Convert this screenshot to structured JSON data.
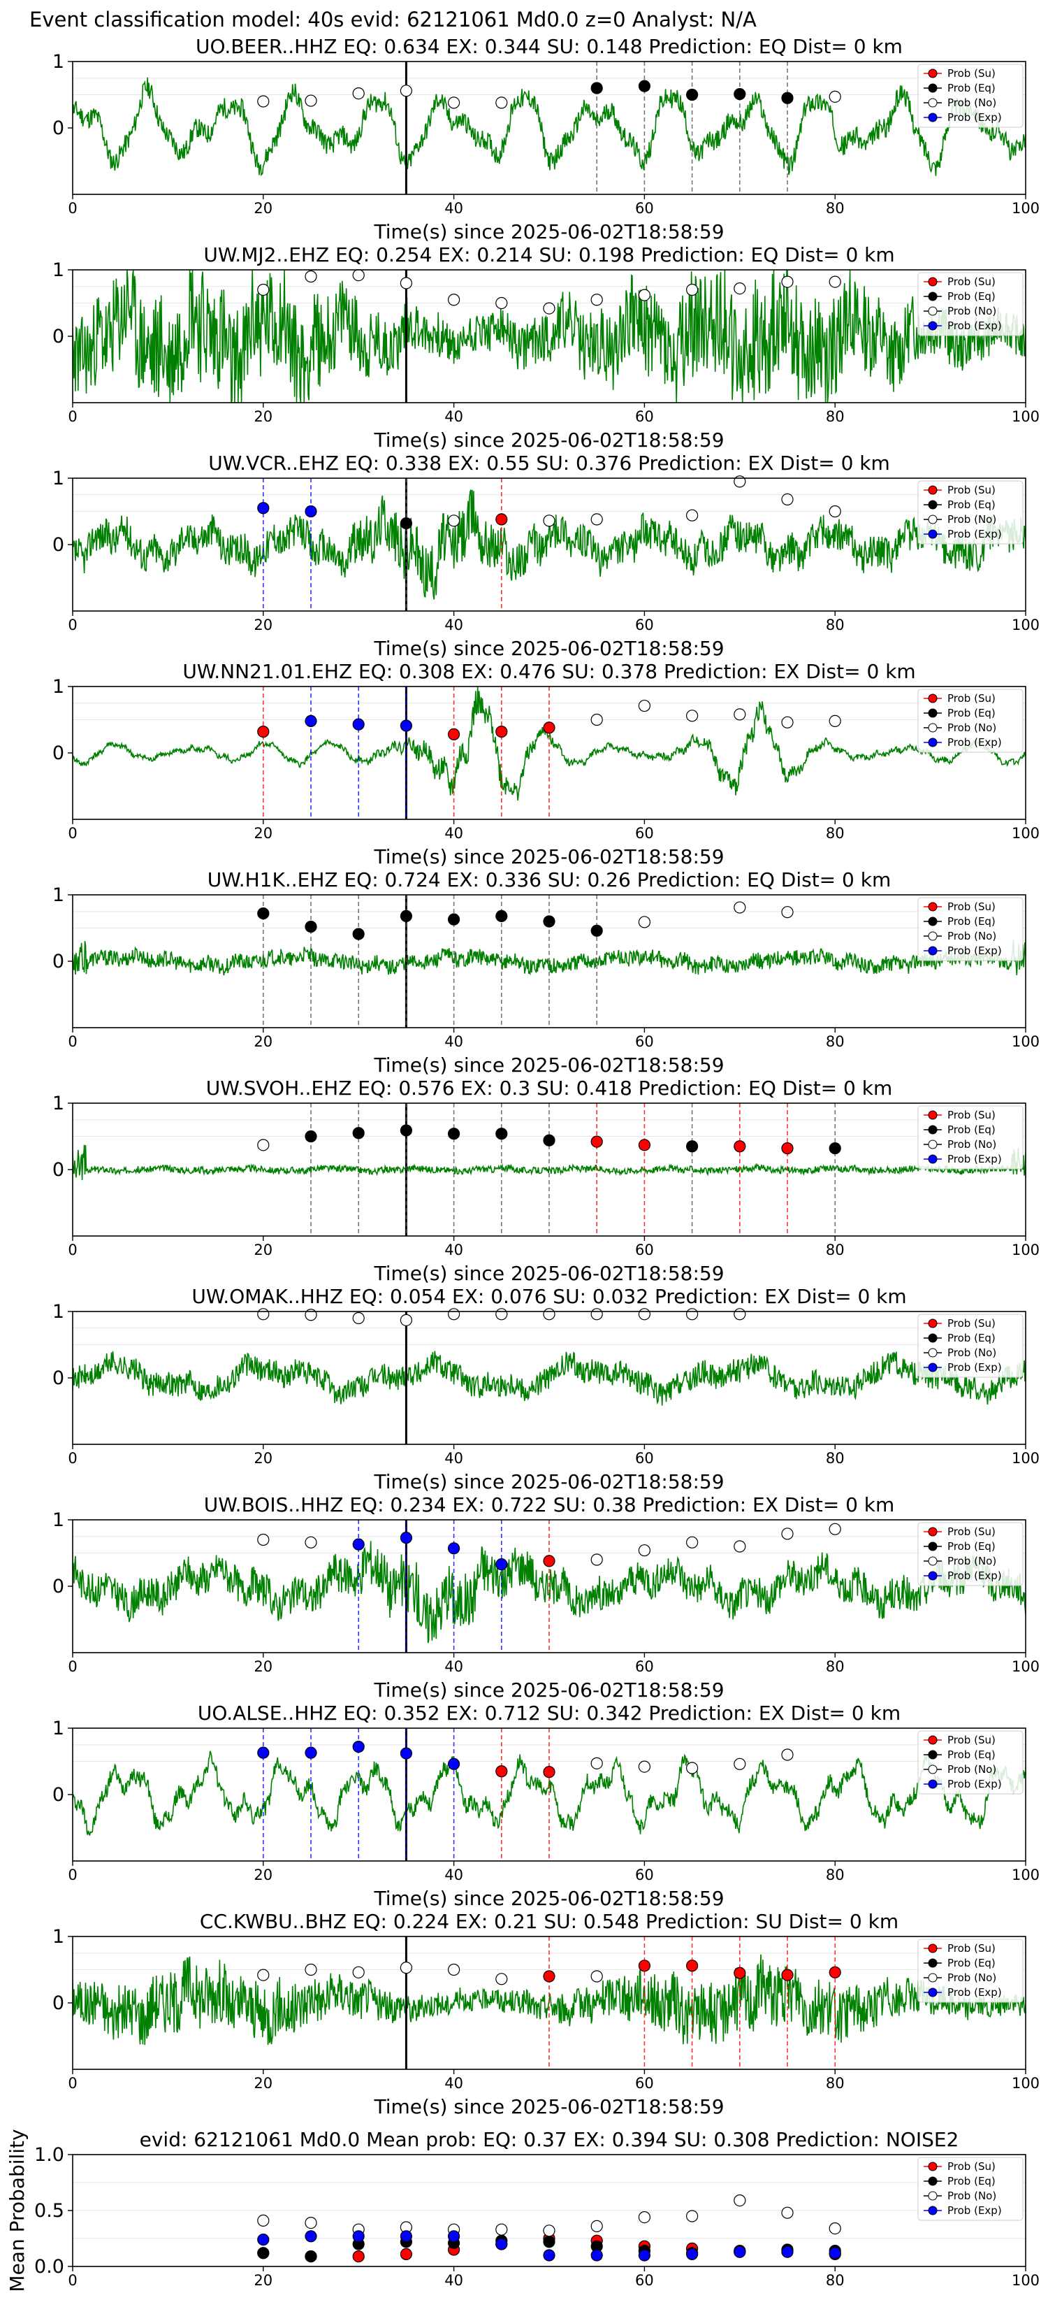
{
  "figure_title": "Event classification model: 40s evid: 62121061 Md0.0 z=0 Analyst: N/A",
  "legend_labels": [
    "Prob (Su)",
    "Prob (Eq)",
    "Prob (No)",
    "Prob (Exp)"
  ],
  "colors": {
    "su": "#ff0000",
    "eq": "#000000",
    "no": "#ffffff",
    "exp": "#0000ff",
    "waveform": "#008000"
  },
  "chart_data": [
    {
      "type": "line",
      "station": "UO.BEER..HHZ",
      "title": "UO.BEER..HHZ   EQ: 0.634   EX: 0.344   SU: 0.148   Prediction: EQ    Dist= 0 km",
      "xlabel": "Time(s) since 2025-06-02T18:58:59",
      "xlim": [
        0,
        100
      ],
      "ylim": [
        -1,
        1
      ],
      "xticks": [
        0,
        20,
        40,
        60,
        80,
        100
      ],
      "yticks": [
        0,
        1
      ],
      "pick_time": 35,
      "waveform": {
        "seed": 11,
        "style": "smooth",
        "amp": 0.6,
        "noise": 0.15
      },
      "points": [
        {
          "x": 20,
          "y": 0.4,
          "class": "no"
        },
        {
          "x": 25,
          "y": 0.41,
          "class": "no"
        },
        {
          "x": 30,
          "y": 0.52,
          "class": "no"
        },
        {
          "x": 35,
          "y": 0.56,
          "class": "no"
        },
        {
          "x": 40,
          "y": 0.38,
          "class": "no"
        },
        {
          "x": 45,
          "y": 0.38,
          "class": "no"
        },
        {
          "x": 55,
          "y": 0.6,
          "class": "eq"
        },
        {
          "x": 60,
          "y": 0.63,
          "class": "eq"
        },
        {
          "x": 65,
          "y": 0.5,
          "class": "eq"
        },
        {
          "x": 70,
          "y": 0.51,
          "class": "eq"
        },
        {
          "x": 75,
          "y": 0.45,
          "class": "eq"
        },
        {
          "x": 80,
          "y": 0.47,
          "class": "no"
        }
      ]
    },
    {
      "type": "line",
      "station": "UW.MJ2..EHZ",
      "title": "UW.MJ2..EHZ   EQ: 0.254   EX: 0.214   SU: 0.198   Prediction: EQ    Dist= 0 km",
      "xlabel": "Time(s) since 2025-06-02T18:58:59",
      "xlim": [
        0,
        100
      ],
      "ylim": [
        -1,
        1
      ],
      "xticks": [
        0,
        20,
        40,
        60,
        80,
        100
      ],
      "yticks": [
        0,
        1
      ],
      "pick_time": 35,
      "waveform": {
        "seed": 23,
        "style": "noisy",
        "amp": 0.5,
        "noise": 0.75
      },
      "points": [
        {
          "x": 20,
          "y": 0.7,
          "class": "no"
        },
        {
          "x": 25,
          "y": 0.9,
          "class": "no"
        },
        {
          "x": 30,
          "y": 0.92,
          "class": "no"
        },
        {
          "x": 35,
          "y": 0.8,
          "class": "no"
        },
        {
          "x": 40,
          "y": 0.55,
          "class": "no"
        },
        {
          "x": 45,
          "y": 0.5,
          "class": "no"
        },
        {
          "x": 50,
          "y": 0.42,
          "class": "no"
        },
        {
          "x": 55,
          "y": 0.55,
          "class": "no"
        },
        {
          "x": 60,
          "y": 0.62,
          "class": "no"
        },
        {
          "x": 65,
          "y": 0.7,
          "class": "no"
        },
        {
          "x": 70,
          "y": 0.72,
          "class": "no"
        },
        {
          "x": 75,
          "y": 0.82,
          "class": "no"
        },
        {
          "x": 80,
          "y": 0.82,
          "class": "no"
        }
      ]
    },
    {
      "type": "line",
      "station": "UW.VCR..EHZ",
      "title": "UW.VCR..EHZ   EQ: 0.338   EX: 0.55   SU: 0.376   Prediction: EX    Dist= 0 km",
      "xlabel": "Time(s) since 2025-06-02T18:58:59",
      "xlim": [
        0,
        100
      ],
      "ylim": [
        -1,
        1
      ],
      "xticks": [
        0,
        20,
        40,
        60,
        80,
        100
      ],
      "yticks": [
        0,
        1
      ],
      "pick_time": 35,
      "waveform": {
        "seed": 37,
        "style": "mixed",
        "amp": 0.4,
        "noise": 0.35
      },
      "points": [
        {
          "x": 20,
          "y": 0.55,
          "class": "exp"
        },
        {
          "x": 25,
          "y": 0.5,
          "class": "exp"
        },
        {
          "x": 35,
          "y": 0.32,
          "class": "eq"
        },
        {
          "x": 40,
          "y": 0.36,
          "class": "no"
        },
        {
          "x": 45,
          "y": 0.38,
          "class": "su"
        },
        {
          "x": 50,
          "y": 0.36,
          "class": "no"
        },
        {
          "x": 55,
          "y": 0.38,
          "class": "no"
        },
        {
          "x": 65,
          "y": 0.44,
          "class": "no"
        },
        {
          "x": 70,
          "y": 0.95,
          "class": "no"
        },
        {
          "x": 75,
          "y": 0.68,
          "class": "no"
        },
        {
          "x": 80,
          "y": 0.5,
          "class": "no"
        }
      ]
    },
    {
      "type": "line",
      "station": "UW.NN21.01.EHZ",
      "title": "UW.NN21.01.EHZ   EQ: 0.308   EX: 0.476   SU: 0.378   Prediction: EX    Dist= 0 km",
      "xlabel": "Time(s) since 2025-06-02T18:58:59",
      "xlim": [
        0,
        100
      ],
      "ylim": [
        -1,
        1
      ],
      "xticks": [
        0,
        20,
        40,
        60,
        80,
        100
      ],
      "yticks": [
        0,
        1
      ],
      "pick_time": 35,
      "waveform": {
        "seed": 41,
        "style": "burst",
        "amp": 0.5,
        "noise": 0.12
      },
      "points": [
        {
          "x": 20,
          "y": 0.32,
          "class": "su"
        },
        {
          "x": 25,
          "y": 0.48,
          "class": "exp"
        },
        {
          "x": 30,
          "y": 0.43,
          "class": "exp"
        },
        {
          "x": 35,
          "y": 0.41,
          "class": "exp"
        },
        {
          "x": 40,
          "y": 0.28,
          "class": "su"
        },
        {
          "x": 45,
          "y": 0.32,
          "class": "su"
        },
        {
          "x": 50,
          "y": 0.38,
          "class": "su"
        },
        {
          "x": 55,
          "y": 0.5,
          "class": "no"
        },
        {
          "x": 60,
          "y": 0.71,
          "class": "no"
        },
        {
          "x": 65,
          "y": 0.56,
          "class": "no"
        },
        {
          "x": 70,
          "y": 0.58,
          "class": "no"
        },
        {
          "x": 75,
          "y": 0.46,
          "class": "no"
        },
        {
          "x": 80,
          "y": 0.48,
          "class": "no"
        }
      ]
    },
    {
      "type": "line",
      "station": "UW.H1K..EHZ",
      "title": "UW.H1K..EHZ   EQ: 0.724   EX: 0.336   SU: 0.26   Prediction: EQ    Dist= 0 km",
      "xlabel": "Time(s) since 2025-06-02T18:58:59",
      "xlim": [
        0,
        100
      ],
      "ylim": [
        -1,
        1
      ],
      "xticks": [
        0,
        20,
        40,
        60,
        80,
        100
      ],
      "yticks": [
        0,
        1
      ],
      "pick_time": 35,
      "waveform": {
        "seed": 53,
        "style": "quiet",
        "amp": 0.1,
        "noise": 0.12
      },
      "points": [
        {
          "x": 20,
          "y": 0.72,
          "class": "eq"
        },
        {
          "x": 25,
          "y": 0.52,
          "class": "eq"
        },
        {
          "x": 30,
          "y": 0.41,
          "class": "eq"
        },
        {
          "x": 35,
          "y": 0.68,
          "class": "eq"
        },
        {
          "x": 40,
          "y": 0.63,
          "class": "eq"
        },
        {
          "x": 45,
          "y": 0.68,
          "class": "eq"
        },
        {
          "x": 50,
          "y": 0.6,
          "class": "eq"
        },
        {
          "x": 55,
          "y": 0.46,
          "class": "eq"
        },
        {
          "x": 60,
          "y": 0.59,
          "class": "no"
        },
        {
          "x": 70,
          "y": 0.81,
          "class": "no"
        },
        {
          "x": 75,
          "y": 0.74,
          "class": "no"
        }
      ]
    },
    {
      "type": "line",
      "station": "UW.SVOH..EHZ",
      "title": "UW.SVOH..EHZ   EQ: 0.576   EX: 0.3   SU: 0.418   Prediction: EQ    Dist= 0 km",
      "xlabel": "Time(s) since 2025-06-02T18:58:59",
      "xlim": [
        0,
        100
      ],
      "ylim": [
        -1,
        1
      ],
      "xticks": [
        0,
        20,
        40,
        60,
        80,
        100
      ],
      "yticks": [
        0,
        1
      ],
      "pick_time": 35,
      "waveform": {
        "seed": 67,
        "style": "quiet",
        "amp": 0.03,
        "noise": 0.05
      },
      "points": [
        {
          "x": 20,
          "y": 0.37,
          "class": "no"
        },
        {
          "x": 25,
          "y": 0.5,
          "class": "eq"
        },
        {
          "x": 30,
          "y": 0.55,
          "class": "eq"
        },
        {
          "x": 35,
          "y": 0.59,
          "class": "eq"
        },
        {
          "x": 40,
          "y": 0.54,
          "class": "eq"
        },
        {
          "x": 45,
          "y": 0.54,
          "class": "eq"
        },
        {
          "x": 50,
          "y": 0.44,
          "class": "eq"
        },
        {
          "x": 55,
          "y": 0.42,
          "class": "su"
        },
        {
          "x": 60,
          "y": 0.37,
          "class": "su"
        },
        {
          "x": 65,
          "y": 0.35,
          "class": "eq"
        },
        {
          "x": 70,
          "y": 0.35,
          "class": "su"
        },
        {
          "x": 75,
          "y": 0.32,
          "class": "su"
        },
        {
          "x": 80,
          "y": 0.32,
          "class": "eq"
        }
      ]
    },
    {
      "type": "line",
      "station": "UW.OMAK..HHZ",
      "title": "UW.OMAK..HHZ   EQ: 0.054   EX: 0.076   SU: 0.032   Prediction: EX    Dist= 0 km",
      "xlabel": "Time(s) since 2025-06-02T18:58:59",
      "xlim": [
        0,
        100
      ],
      "ylim": [
        -1,
        1
      ],
      "xticks": [
        0,
        20,
        40,
        60,
        80,
        100
      ],
      "yticks": [
        0,
        1
      ],
      "pick_time": 35,
      "waveform": {
        "seed": 71,
        "style": "smooth",
        "amp": 0.25,
        "noise": 0.18
      },
      "points": [
        {
          "x": 20,
          "y": 0.96,
          "class": "no"
        },
        {
          "x": 25,
          "y": 0.95,
          "class": "no"
        },
        {
          "x": 30,
          "y": 0.9,
          "class": "no"
        },
        {
          "x": 35,
          "y": 0.87,
          "class": "no"
        },
        {
          "x": 40,
          "y": 0.96,
          "class": "no"
        },
        {
          "x": 45,
          "y": 0.96,
          "class": "no"
        },
        {
          "x": 50,
          "y": 0.96,
          "class": "no"
        },
        {
          "x": 55,
          "y": 0.96,
          "class": "no"
        },
        {
          "x": 60,
          "y": 0.96,
          "class": "no"
        },
        {
          "x": 65,
          "y": 0.96,
          "class": "no"
        },
        {
          "x": 70,
          "y": 0.96,
          "class": "no"
        }
      ]
    },
    {
      "type": "line",
      "station": "UW.BOIS..HHZ",
      "title": "UW.BOIS..HHZ   EQ: 0.234   EX: 0.722   SU: 0.38   Prediction: EX    Dist= 0 km",
      "xlabel": "Time(s) since 2025-06-02T18:58:59",
      "xlim": [
        0,
        100
      ],
      "ylim": [
        -1,
        1
      ],
      "xticks": [
        0,
        20,
        40,
        60,
        80,
        100
      ],
      "yticks": [
        0,
        1
      ],
      "pick_time": 35,
      "waveform": {
        "seed": 83,
        "style": "mixed",
        "amp": 0.45,
        "noise": 0.35
      },
      "points": [
        {
          "x": 20,
          "y": 0.7,
          "class": "no"
        },
        {
          "x": 25,
          "y": 0.66,
          "class": "no"
        },
        {
          "x": 30,
          "y": 0.63,
          "class": "exp"
        },
        {
          "x": 35,
          "y": 0.73,
          "class": "exp"
        },
        {
          "x": 40,
          "y": 0.57,
          "class": "exp"
        },
        {
          "x": 45,
          "y": 0.33,
          "class": "exp"
        },
        {
          "x": 50,
          "y": 0.38,
          "class": "su"
        },
        {
          "x": 55,
          "y": 0.4,
          "class": "no"
        },
        {
          "x": 60,
          "y": 0.54,
          "class": "no"
        },
        {
          "x": 65,
          "y": 0.66,
          "class": "no"
        },
        {
          "x": 70,
          "y": 0.6,
          "class": "no"
        },
        {
          "x": 75,
          "y": 0.79,
          "class": "no"
        },
        {
          "x": 80,
          "y": 0.86,
          "class": "no"
        }
      ]
    },
    {
      "type": "line",
      "station": "UO.ALSE..HHZ",
      "title": "UO.ALSE..HHZ   EQ: 0.352   EX: 0.712   SU: 0.342   Prediction: EX    Dist= 0 km",
      "xlabel": "Time(s) since 2025-06-02T18:58:59",
      "xlim": [
        0,
        100
      ],
      "ylim": [
        -1,
        1
      ],
      "xticks": [
        0,
        20,
        40,
        60,
        80,
        100
      ],
      "yticks": [
        0,
        1
      ],
      "pick_time": 35,
      "waveform": {
        "seed": 97,
        "style": "smooth",
        "amp": 0.55,
        "noise": 0.12
      },
      "points": [
        {
          "x": 20,
          "y": 0.63,
          "class": "exp"
        },
        {
          "x": 25,
          "y": 0.63,
          "class": "exp"
        },
        {
          "x": 30,
          "y": 0.72,
          "class": "exp"
        },
        {
          "x": 35,
          "y": 0.62,
          "class": "exp"
        },
        {
          "x": 40,
          "y": 0.46,
          "class": "exp"
        },
        {
          "x": 45,
          "y": 0.35,
          "class": "su"
        },
        {
          "x": 50,
          "y": 0.34,
          "class": "su"
        },
        {
          "x": 55,
          "y": 0.47,
          "class": "no"
        },
        {
          "x": 60,
          "y": 0.42,
          "class": "no"
        },
        {
          "x": 65,
          "y": 0.4,
          "class": "no"
        },
        {
          "x": 70,
          "y": 0.46,
          "class": "no"
        },
        {
          "x": 75,
          "y": 0.6,
          "class": "no"
        }
      ]
    },
    {
      "type": "line",
      "station": "CC.KWBU..BHZ",
      "title": "CC.KWBU..BHZ   EQ: 0.224   EX: 0.21   SU: 0.548   Prediction: SU    Dist= 0 km",
      "xlabel": "Time(s) since 2025-06-02T18:58:59",
      "xlim": [
        0,
        100
      ],
      "ylim": [
        -1,
        1
      ],
      "xticks": [
        0,
        20,
        40,
        60,
        80,
        100
      ],
      "yticks": [
        0,
        1
      ],
      "pick_time": 35,
      "waveform": {
        "seed": 101,
        "style": "noisy",
        "amp": 0.25,
        "noise": 0.4
      },
      "points": [
        {
          "x": 20,
          "y": 0.42,
          "class": "no"
        },
        {
          "x": 25,
          "y": 0.5,
          "class": "no"
        },
        {
          "x": 30,
          "y": 0.46,
          "class": "no"
        },
        {
          "x": 35,
          "y": 0.53,
          "class": "no"
        },
        {
          "x": 40,
          "y": 0.5,
          "class": "no"
        },
        {
          "x": 45,
          "y": 0.36,
          "class": "no"
        },
        {
          "x": 50,
          "y": 0.4,
          "class": "su"
        },
        {
          "x": 55,
          "y": 0.4,
          "class": "no"
        },
        {
          "x": 60,
          "y": 0.56,
          "class": "su"
        },
        {
          "x": 65,
          "y": 0.56,
          "class": "su"
        },
        {
          "x": 70,
          "y": 0.45,
          "class": "su"
        },
        {
          "x": 75,
          "y": 0.42,
          "class": "su"
        },
        {
          "x": 80,
          "y": 0.46,
          "class": "su"
        }
      ]
    },
    {
      "type": "scatter",
      "title": "evid: 62121061   Md0.0   Mean prob:   EQ: 0.37   EX: 0.394   SU: 0.308   Prediction: NOISE2",
      "xlabel": "",
      "ylabel": "Mean Probability",
      "xlim": [
        0,
        100
      ],
      "ylim": [
        0,
        1
      ],
      "xticks": [
        0,
        20,
        40,
        60,
        80,
        100
      ],
      "yticks": [
        0.0,
        0.5,
        1.0
      ],
      "ytick_labels": [
        "0.0",
        "0.5",
        "1.0"
      ],
      "x": [
        20,
        25,
        30,
        35,
        40,
        45,
        50,
        55,
        60,
        65,
        70,
        75,
        80
      ],
      "series": [
        {
          "name": "Prob (Su)",
          "class": "su",
          "values": [
            0.12,
            0.09,
            0.09,
            0.11,
            0.15,
            0.2,
            0.25,
            0.23,
            0.18,
            0.16,
            0.14,
            0.14,
            0.11
          ]
        },
        {
          "name": "Prob (Eq)",
          "class": "eq",
          "values": [
            0.12,
            0.09,
            0.2,
            0.22,
            0.21,
            0.23,
            0.22,
            0.18,
            0.14,
            0.12,
            0.13,
            0.15,
            0.14
          ]
        },
        {
          "name": "Prob (No)",
          "class": "no",
          "values": [
            0.41,
            0.39,
            0.33,
            0.35,
            0.33,
            0.33,
            0.32,
            0.36,
            0.44,
            0.45,
            0.59,
            0.48,
            0.34
          ]
        },
        {
          "name": "Prob (Exp)",
          "class": "exp",
          "values": [
            0.24,
            0.27,
            0.27,
            0.27,
            0.27,
            0.2,
            0.1,
            0.1,
            0.1,
            0.11,
            0.13,
            0.13,
            0.12
          ]
        }
      ]
    }
  ]
}
